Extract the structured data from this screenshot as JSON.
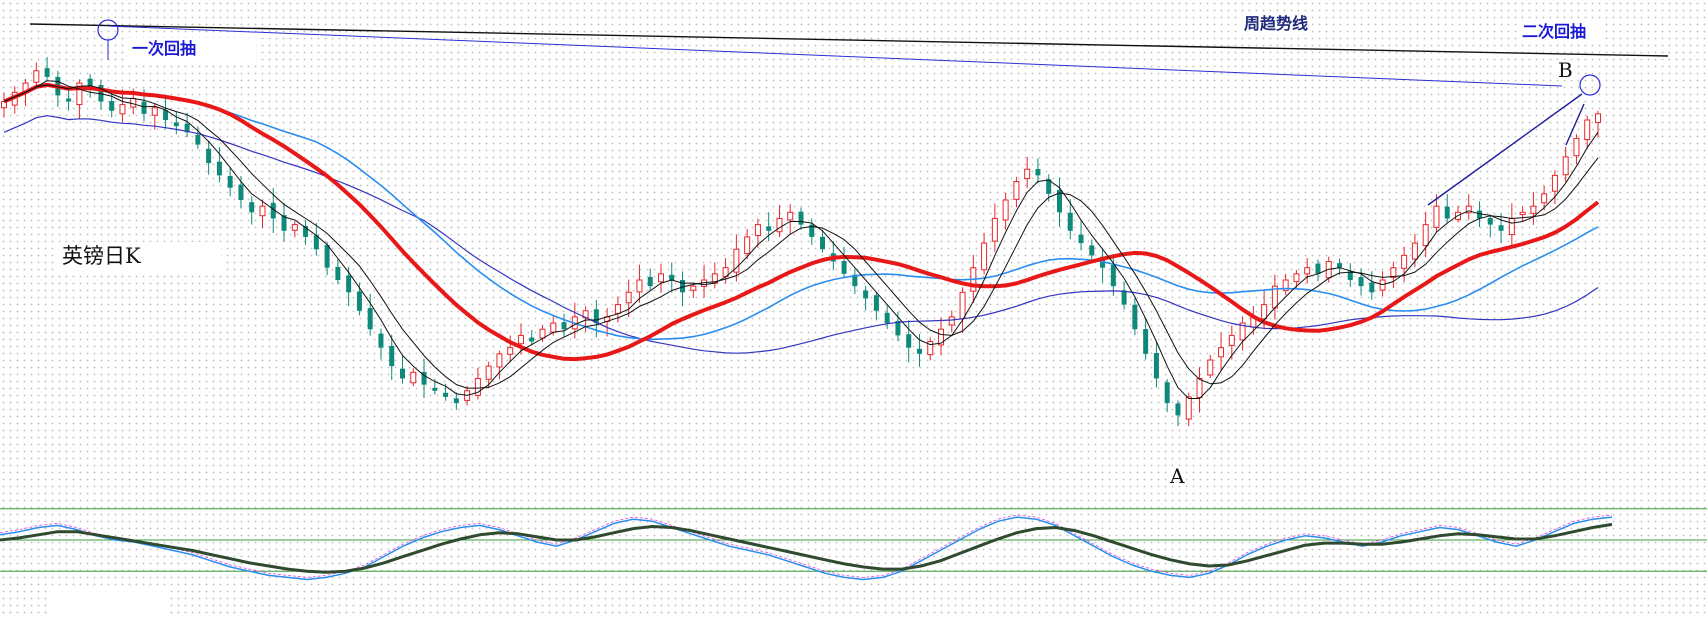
{
  "labels": {
    "first_pullback": "一次回抽",
    "second_pullback": "二次回抽",
    "weekly_trend": "周趋势线",
    "chart_name": "英镑日K",
    "point_a": "A",
    "point_b": "B"
  },
  "colors": {
    "up_candle": "#e8262a",
    "down_candle": "#0f8a7a",
    "ma_thick": "#e81818",
    "ma_blue_light": "#2a8ef0",
    "ma_blue_dark": "#3434c0",
    "ma_black": "#111111",
    "weekly_trendline": "#111111",
    "blue_trendline": "#2c2cd8",
    "osc_fast": "#2a8ef0",
    "osc_slow": "#2f4a2f",
    "osc_level_lines": "#3b9a3b"
  },
  "chart_data": {
    "type": "candlestick",
    "title": "英镑日K",
    "xlabel": "",
    "ylabel": "",
    "annotations": [
      "一次回抽",
      "二次回抽",
      "周趋势线",
      "A",
      "B"
    ],
    "close_path": [
      30,
      33,
      36,
      40,
      38,
      32,
      30,
      36,
      34,
      30,
      27,
      29,
      31,
      26,
      28,
      24,
      22,
      20,
      16,
      10,
      6,
      2,
      -2,
      -6,
      -4,
      -8,
      -12,
      -10,
      -14,
      -18,
      -24,
      -28,
      -32,
      -38,
      -44,
      -50,
      -56,
      -60,
      -58,
      -62,
      -64,
      -66,
      -68,
      -64,
      -60,
      -56,
      -52,
      -50,
      -46,
      -48,
      -44,
      -42,
      -44,
      -40,
      -38,
      -42,
      -40,
      -36,
      -32,
      -28,
      -30,
      -26,
      -28,
      -32,
      -30,
      -28,
      -26,
      -24,
      -18,
      -14,
      -10,
      -12,
      -8,
      -6,
      -10,
      -14,
      -18,
      -22,
      -26,
      -30,
      -34,
      -38,
      -42,
      -46,
      -50,
      -52,
      -48,
      -44,
      -40,
      -32,
      -24,
      -16,
      -8,
      -2,
      4,
      8,
      6,
      0,
      -6,
      -12,
      -16,
      -20,
      -24,
      -30,
      -36,
      -44,
      -52,
      -60,
      -68,
      -72,
      -66,
      -60,
      -54,
      -50,
      -46,
      -42,
      -40,
      -36,
      -30,
      -28,
      -26,
      -24,
      -26,
      -22,
      -24,
      -28,
      -30,
      -32,
      -28,
      -24,
      -20,
      -16,
      -10,
      -4,
      -8,
      -6,
      -4,
      -8,
      -10,
      -12,
      -8,
      -6,
      -4,
      0,
      6,
      12,
      18,
      24,
      26
    ],
    "oscillator": {
      "fast": [
        55,
        58,
        62,
        64,
        60,
        54,
        50,
        48,
        44,
        40,
        36,
        30,
        24,
        20,
        16,
        14,
        12,
        14,
        18,
        24,
        34,
        44,
        52,
        58,
        62,
        64,
        60,
        54,
        48,
        44,
        50,
        58,
        66,
        70,
        68,
        62,
        56,
        50,
        44,
        40,
        36,
        30,
        24,
        18,
        14,
        12,
        14,
        20,
        30,
        40,
        50,
        60,
        68,
        72,
        70,
        64,
        54,
        44,
        34,
        26,
        20,
        16,
        14,
        18,
        26,
        36,
        44,
        50,
        54,
        52,
        48,
        44,
        48,
        54,
        58,
        62,
        60,
        54,
        48,
        44,
        50,
        58,
        66,
        70,
        72
      ],
      "slow": [
        50,
        52,
        55,
        58,
        58,
        55,
        52,
        49,
        46,
        43,
        40,
        36,
        32,
        28,
        25,
        22,
        20,
        19,
        20,
        23,
        28,
        34,
        40,
        46,
        51,
        55,
        57,
        56,
        53,
        50,
        50,
        53,
        57,
        61,
        63,
        62,
        59,
        55,
        51,
        47,
        43,
        39,
        35,
        31,
        27,
        24,
        22,
        22,
        25,
        30,
        37,
        44,
        51,
        57,
        61,
        62,
        59,
        54,
        48,
        42,
        36,
        31,
        27,
        25,
        26,
        30,
        35,
        40,
        45,
        47,
        47,
        46,
        46,
        48,
        51,
        54,
        56,
        55,
        53,
        51,
        51,
        54,
        58,
        62,
        65
      ],
      "levels": [
        80,
        50,
        20
      ]
    }
  }
}
